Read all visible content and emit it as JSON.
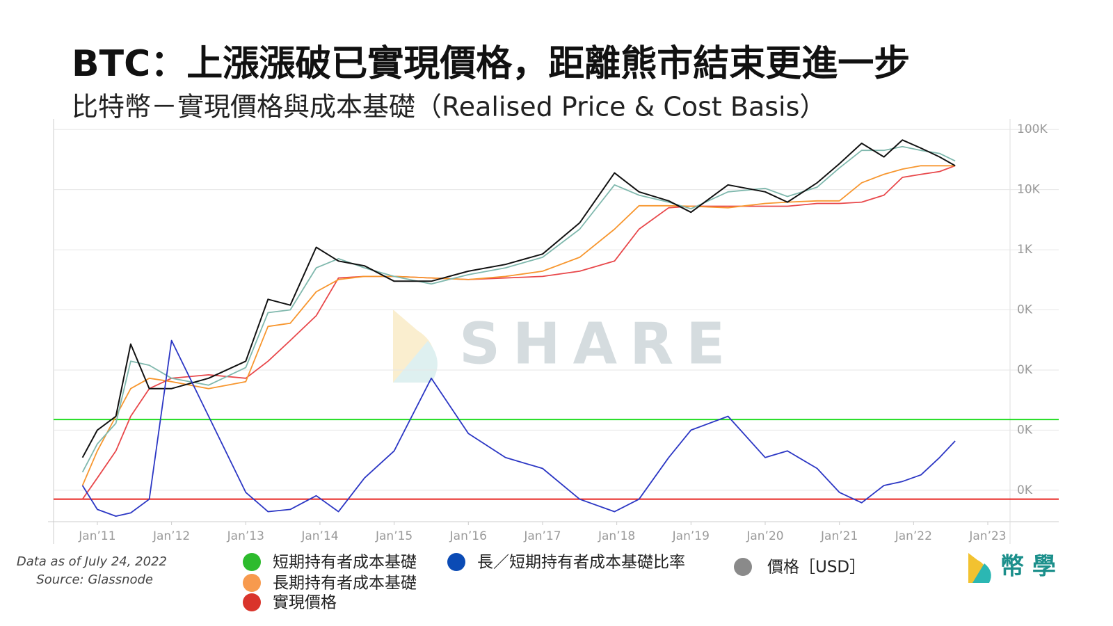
{
  "chart_data": {
    "type": "line",
    "title": "BTC：上漲漲破已實現價格，距離熊市結束更進一步",
    "subtitle": "比特幣－實現價格與成本基礎（Realised Price & Cost Basis）",
    "data_note": "Data as of July 24, 2022",
    "source": "Source: Glassnode",
    "watermark": "SHARE",
    "brand": "幣 學",
    "log_scale": true,
    "grid": true,
    "xlim": [
      2010.41,
      2023.3
    ],
    "xticks": [
      {
        "value": 2011,
        "label": "Jan’11"
      },
      {
        "value": 2012,
        "label": "Jan’12"
      },
      {
        "value": 2013,
        "label": "Jan’13"
      },
      {
        "value": 2014,
        "label": "Jan’14"
      },
      {
        "value": 2015,
        "label": "Jan’15"
      },
      {
        "value": 2016,
        "label": "Jan’16"
      },
      {
        "value": 2017,
        "label": "Jan’17"
      },
      {
        "value": 2018,
        "label": "Jan’18"
      },
      {
        "value": 2019,
        "label": "Jan’19"
      },
      {
        "value": 2020,
        "label": "Jan’20"
      },
      {
        "value": 2021,
        "label": "Jan’21"
      },
      {
        "value": 2022,
        "label": "Jan’22"
      },
      {
        "value": 2023,
        "label": "Jan’23"
      }
    ],
    "ylim": [
      0.03,
      150000
    ],
    "yticks": [
      {
        "value": 100000,
        "label": "100K"
      },
      {
        "value": 10000,
        "label": "10K"
      },
      {
        "value": 1000,
        "label": "1K"
      },
      {
        "value": 100,
        "label": "0K"
      },
      {
        "value": 10,
        "label": "0K"
      },
      {
        "value": 1,
        "label": "0K"
      },
      {
        "value": 0.1,
        "label": "0K"
      }
    ],
    "reference_lines": [
      {
        "value": 1.5,
        "color": "#22dd22"
      },
      {
        "value": 0.071,
        "color": "#e8231f"
      }
    ],
    "x": [
      2010.8,
      2011.0,
      2011.25,
      2011.45,
      2011.7,
      2012.0,
      2012.5,
      2013.0,
      2013.3,
      2013.6,
      2013.95,
      2014.25,
      2014.6,
      2015.0,
      2015.5,
      2016.0,
      2016.5,
      2017.0,
      2017.5,
      2017.97,
      2018.3,
      2018.7,
      2019.0,
      2019.5,
      2020.0,
      2020.3,
      2020.7,
      2021.0,
      2021.3,
      2021.6,
      2021.85,
      2022.1,
      2022.35,
      2022.56
    ],
    "series": [
      {
        "name": "實現價格",
        "color": "#e8474a",
        "legend_color": "#d9342b",
        "values": [
          0.071,
          0.16,
          0.45,
          1.7,
          4.9,
          7.3,
          8.3,
          7.3,
          14,
          31,
          80,
          340,
          360,
          360,
          340,
          320,
          340,
          360,
          440,
          650,
          2200,
          5000,
          5300,
          5300,
          5300,
          5300,
          5900,
          5900,
          6200,
          8100,
          16000,
          18000,
          20000,
          25000
        ]
      },
      {
        "name": "長期持有者成本基礎",
        "color": "#f7962e",
        "legend_color": "#f79a4e",
        "values": [
          0.12,
          0.45,
          1.7,
          4.9,
          7.3,
          6.4,
          4.9,
          6.4,
          53,
          60,
          200,
          320,
          360,
          360,
          340,
          320,
          360,
          440,
          750,
          2200,
          5400,
          5400,
          5300,
          5000,
          5900,
          6200,
          6500,
          6500,
          13000,
          18000,
          22000,
          25000,
          25000,
          25000
        ]
      },
      {
        "name": "短期持有者成本基礎",
        "color": "#7fb8ad",
        "legend_color": "#2dbb2d",
        "values": [
          0.2,
          0.59,
          1.3,
          14,
          12,
          7.3,
          5.6,
          11,
          90,
          100,
          500,
          710,
          500,
          360,
          270,
          385,
          500,
          750,
          2200,
          12000,
          8100,
          6200,
          4800,
          9200,
          10500,
          7700,
          11000,
          23000,
          45000,
          45000,
          52000,
          45000,
          40000,
          30000
        ]
      },
      {
        "name": "價格［USD］",
        "color": "#111111",
        "legend_color": "#8a8a8a",
        "values": [
          0.35,
          1,
          1.7,
          27,
          4.9,
          4.9,
          7.3,
          14,
          150,
          120,
          1100,
          650,
          540,
          300,
          300,
          440,
          570,
          850,
          2800,
          19000,
          9200,
          6500,
          4200,
          12000,
          9200,
          6200,
          13000,
          27000,
          59000,
          35000,
          67000,
          49000,
          35000,
          25000
        ]
      },
      {
        "name": "長／短期持有者成本基礎比率",
        "color": "#2b36c4",
        "legend_color": "#0b4bb5",
        "values": [
          0.12,
          0.048,
          0.037,
          0.042,
          0.071,
          31,
          1.7,
          0.092,
          0.044,
          0.048,
          0.081,
          0.044,
          0.16,
          0.45,
          7.3,
          0.88,
          0.35,
          0.23,
          0.071,
          0.044,
          0.071,
          0.35,
          1,
          1.7,
          0.35,
          0.45,
          0.23,
          0.092,
          0.062,
          0.12,
          0.14,
          0.18,
          0.35,
          0.66
        ]
      }
    ]
  }
}
